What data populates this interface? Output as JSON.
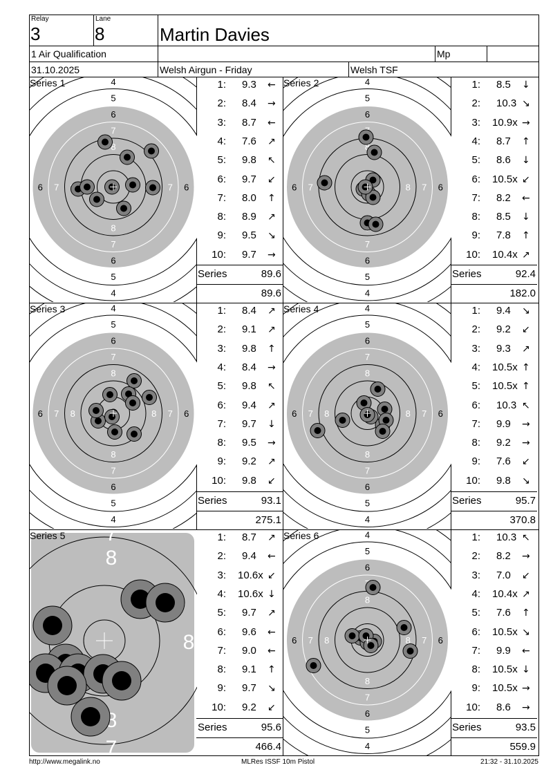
{
  "header": {
    "relay_label": "Relay",
    "relay": "3",
    "lane_label": "Lane",
    "lane": "8",
    "name": "Martin Davies",
    "event": "1 Air Qualification",
    "mp": "Mp",
    "date": "31.10.2025",
    "competition": "Welsh Airgun - Friday",
    "club": "Welsh TSF"
  },
  "series_label": "Series",
  "series": [
    {
      "title": "Series 1",
      "shots": [
        {
          "n": "1:",
          "v": "9.3",
          "dir": "←"
        },
        {
          "n": "2:",
          "v": "8.4",
          "dir": "→"
        },
        {
          "n": "3:",
          "v": "8.7",
          "dir": "←"
        },
        {
          "n": "4:",
          "v": "7.6",
          "dir": "↗"
        },
        {
          "n": "5:",
          "v": "9.8",
          "dir": "↖"
        },
        {
          "n": "6:",
          "v": "9.7",
          "dir": "↙"
        },
        {
          "n": "7:",
          "v": "8.0",
          "dir": "↑"
        },
        {
          "n": "8:",
          "v": "8.9",
          "dir": "↗"
        },
        {
          "n": "9:",
          "v": "9.5",
          "dir": "↘"
        },
        {
          "n": "10:",
          "v": "9.7",
          "dir": "→"
        }
      ],
      "total": "89.6",
      "cumulative": "89.6"
    },
    {
      "title": "Series 2",
      "shots": [
        {
          "n": "1:",
          "v": "8.5",
          "dir": "↓"
        },
        {
          "n": "2:",
          "v": "10.3",
          "dir": "↘"
        },
        {
          "n": "3:",
          "v": "10.9x",
          "dir": "→"
        },
        {
          "n": "4:",
          "v": "8.7",
          "dir": "↑"
        },
        {
          "n": "5:",
          "v": "8.6",
          "dir": "↓"
        },
        {
          "n": "6:",
          "v": "10.5x",
          "dir": "↙"
        },
        {
          "n": "7:",
          "v": "8.2",
          "dir": "←"
        },
        {
          "n": "8:",
          "v": "8.5",
          "dir": "↓"
        },
        {
          "n": "9:",
          "v": "7.8",
          "dir": "↑"
        },
        {
          "n": "10:",
          "v": "10.4x",
          "dir": "↗"
        }
      ],
      "total": "92.4",
      "cumulative": "182.0"
    },
    {
      "title": "Series 3",
      "shots": [
        {
          "n": "1:",
          "v": "8.4",
          "dir": "↗"
        },
        {
          "n": "2:",
          "v": "9.1",
          "dir": "↗"
        },
        {
          "n": "3:",
          "v": "9.8",
          "dir": "↑"
        },
        {
          "n": "4:",
          "v": "8.4",
          "dir": "→"
        },
        {
          "n": "5:",
          "v": "9.8",
          "dir": "↖"
        },
        {
          "n": "6:",
          "v": "9.4",
          "dir": "↗"
        },
        {
          "n": "7:",
          "v": "9.7",
          "dir": "↓"
        },
        {
          "n": "8:",
          "v": "9.5",
          "dir": "→"
        },
        {
          "n": "9:",
          "v": "9.2",
          "dir": "↗"
        },
        {
          "n": "10:",
          "v": "9.8",
          "dir": "↙"
        }
      ],
      "total": "93.1",
      "cumulative": "275.1"
    },
    {
      "title": "Series 4",
      "shots": [
        {
          "n": "1:",
          "v": "9.4",
          "dir": "↘"
        },
        {
          "n": "2:",
          "v": "9.2",
          "dir": "↙"
        },
        {
          "n": "3:",
          "v": "9.3",
          "dir": "↗"
        },
        {
          "n": "4:",
          "v": "10.5x",
          "dir": "↑"
        },
        {
          "n": "5:",
          "v": "10.5x",
          "dir": "↑"
        },
        {
          "n": "6:",
          "v": "10.3",
          "dir": "↖"
        },
        {
          "n": "7:",
          "v": "9.9",
          "dir": "→"
        },
        {
          "n": "8:",
          "v": "9.2",
          "dir": "→"
        },
        {
          "n": "9:",
          "v": "7.6",
          "dir": "↙"
        },
        {
          "n": "10:",
          "v": "9.8",
          "dir": "↘"
        }
      ],
      "total": "95.7",
      "cumulative": "370.8"
    },
    {
      "title": "Series 5",
      "shots": [
        {
          "n": "1:",
          "v": "8.7",
          "dir": "↗"
        },
        {
          "n": "2:",
          "v": "9.4",
          "dir": "←"
        },
        {
          "n": "3:",
          "v": "10.6x",
          "dir": "↙"
        },
        {
          "n": "4:",
          "v": "10.6x",
          "dir": "↓"
        },
        {
          "n": "5:",
          "v": "9.7",
          "dir": "↗"
        },
        {
          "n": "6:",
          "v": "9.6",
          "dir": "←"
        },
        {
          "n": "7:",
          "v": "9.0",
          "dir": "←"
        },
        {
          "n": "8:",
          "v": "9.1",
          "dir": "↑"
        },
        {
          "n": "9:",
          "v": "9.7",
          "dir": "↘"
        },
        {
          "n": "10:",
          "v": "9.2",
          "dir": "↙"
        }
      ],
      "total": "95.6",
      "cumulative": "466.4"
    },
    {
      "title": "Series 6",
      "shots": [
        {
          "n": "1:",
          "v": "10.3",
          "dir": "↖"
        },
        {
          "n": "2:",
          "v": "8.2",
          "dir": "→"
        },
        {
          "n": "3:",
          "v": "7.0",
          "dir": "↙"
        },
        {
          "n": "4:",
          "v": "10.4x",
          "dir": "↗"
        },
        {
          "n": "5:",
          "v": "7.6",
          "dir": "↑"
        },
        {
          "n": "6:",
          "v": "10.5x",
          "dir": "↘"
        },
        {
          "n": "7:",
          "v": "9.9",
          "dir": "←"
        },
        {
          "n": "8:",
          "v": "10.5x",
          "dir": "↓"
        },
        {
          "n": "9:",
          "v": "10.5x",
          "dir": "→"
        },
        {
          "n": "10:",
          "v": "8.6",
          "dir": "→"
        }
      ],
      "total": "93.5",
      "cumulative": "559.9"
    }
  ],
  "footer": {
    "url": "http://www.megalink.no",
    "software": "MLRes ISSF 10m Pistol",
    "timestamp": "21:32 - 31.10.2025"
  },
  "colors": {
    "target_black": "#bdbdbd",
    "hole_ring": "#808080",
    "hole_center": "#000000"
  }
}
